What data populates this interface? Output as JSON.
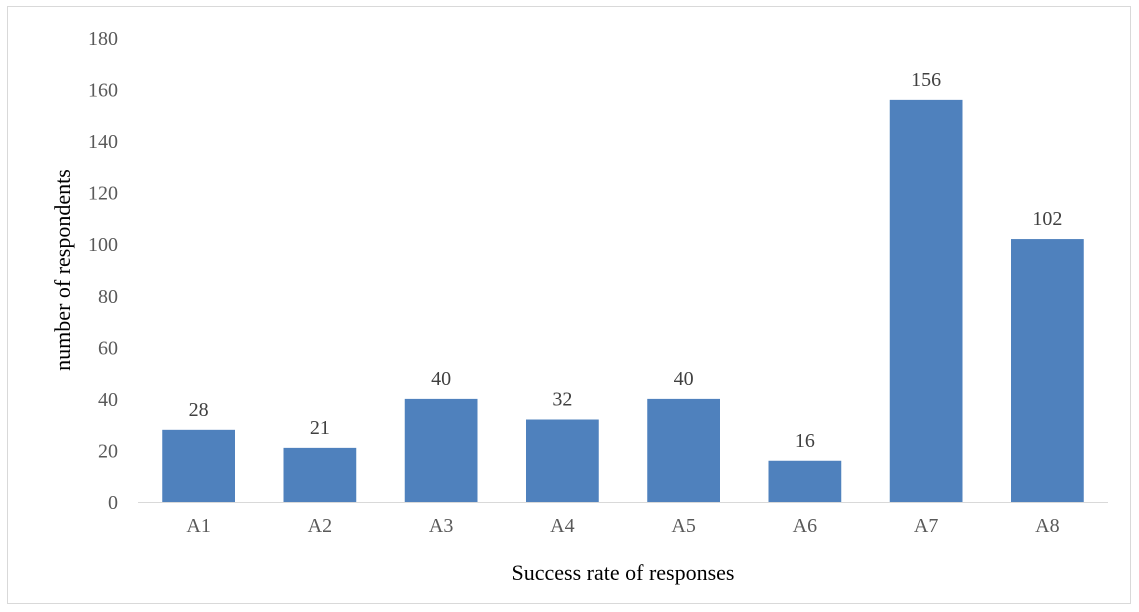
{
  "chart_data": {
    "type": "bar",
    "title": "",
    "xlabel": "Success rate of responses",
    "ylabel": "number of respondents",
    "categories": [
      "A1",
      "A2",
      "A3",
      "A4",
      "A5",
      "A6",
      "A7",
      "A8"
    ],
    "values": [
      28,
      21,
      40,
      32,
      40,
      16,
      156,
      102
    ],
    "ylim": [
      0,
      180
    ],
    "yticks": [
      0,
      20,
      40,
      60,
      80,
      100,
      120,
      140,
      160,
      180
    ],
    "grid": false,
    "legend": "none",
    "data_labels": true,
    "bar_color": "#4f81bd"
  }
}
